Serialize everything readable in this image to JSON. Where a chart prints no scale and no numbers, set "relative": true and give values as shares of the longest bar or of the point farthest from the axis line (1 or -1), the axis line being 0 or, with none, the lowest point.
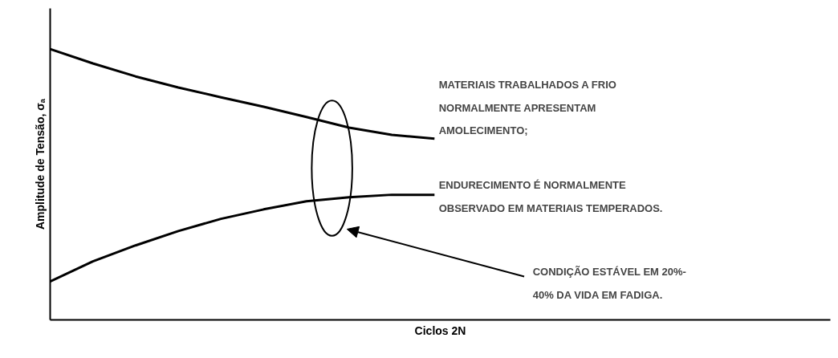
{
  "chart_data": {
    "type": "line",
    "relative": true,
    "xlabel": "Ciclos 2N",
    "ylabel": "Amplitude de Tensão, σₐ",
    "categories": [
      null,
      null,
      null,
      null,
      null,
      null,
      null,
      null,
      null,
      null
    ],
    "series": [
      {
        "color": "#000000",
        "values": [
          1.0,
          0.947,
          0.899,
          0.858,
          0.822,
          0.787,
          0.749,
          0.71,
          0.683,
          0.669
        ]
      },
      {
        "color": "#000000",
        "values": [
          0.142,
          0.216,
          0.275,
          0.328,
          0.373,
          0.408,
          0.438,
          0.453,
          0.462,
          0.462
        ]
      }
    ],
    "annotations": [
      "MATERIAIS TRABALHADOS A FRIO\nNORMALMENTE APRESENTAM\nAMOLECIMENTO;",
      "ENDURECIMENTO É NORMALMENTE\nOBSERVADO EM MATERIAIS TEMPERADOS.",
      "CONDIÇÃO ESTÁVEL EM 20%-\n40% DA VIDA EM FADIGA."
    ]
  }
}
